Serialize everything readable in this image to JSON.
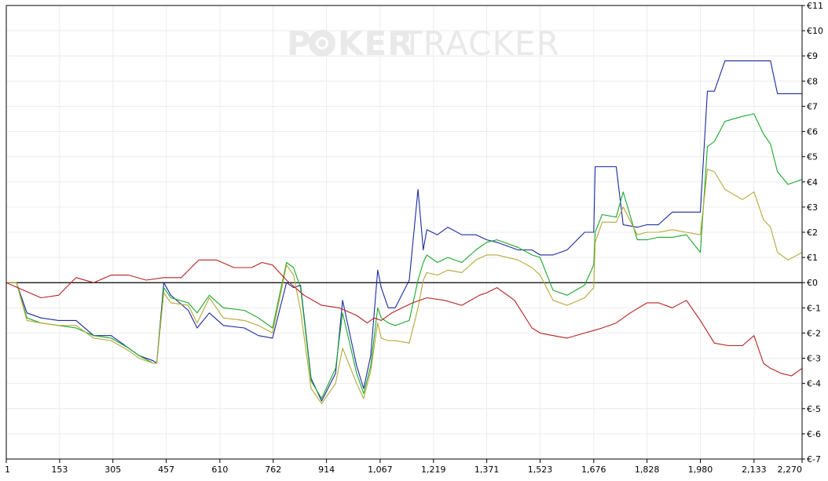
{
  "watermark": {
    "text_left": "P",
    "text_bold": "KER",
    "text_light": "TRACKER",
    "icon": "poker-chip-icon"
  },
  "chart_data": {
    "type": "line",
    "x_ticks": [
      1,
      153,
      305,
      457,
      610,
      762,
      914,
      1067,
      1219,
      1371,
      1523,
      1676,
      1828,
      1980,
      2133,
      2270
    ],
    "x_tick_labels": [
      "1",
      "153",
      "305",
      "457",
      "610",
      "762",
      "914",
      "1,067",
      "1,219",
      "1,371",
      "1,523",
      "1,676",
      "1,828",
      "1,980",
      "2,133",
      "2,270"
    ],
    "y_ticks": [
      -7,
      -6,
      -5,
      -4,
      -3,
      -2,
      -1,
      0,
      1,
      2,
      3,
      4,
      5,
      6,
      7,
      8,
      9,
      10,
      11
    ],
    "y_tick_labels": [
      "€-7",
      "€-6",
      "€-5",
      "€-4",
      "€-3",
      "€-2",
      "€-1",
      "€0",
      "€1",
      "€2",
      "€3",
      "€4",
      "€5",
      "€6",
      "€7",
      "€8",
      "€9",
      "€10",
      "€11"
    ],
    "xlim": [
      1,
      2270
    ],
    "ylim": [
      -7,
      11
    ],
    "grid": true,
    "y_axis_side": "right",
    "colors": {
      "blue": "#1a2a9c",
      "green": "#1aa82a",
      "olive": "#b4a838",
      "red": "#b42222",
      "zero_line": "#000000",
      "grid": "#ececec"
    },
    "series": [
      {
        "color": "#1a2a9c",
        "x": [
          1,
          30,
          60,
          100,
          150,
          200,
          250,
          300,
          350,
          380,
          420,
          430,
          450,
          470,
          520,
          545,
          580,
          620,
          680,
          720,
          760,
          800,
          820,
          840,
          870,
          900,
          940,
          960,
          1000,
          1020,
          1040,
          1060,
          1070,
          1090,
          1110,
          1150,
          1175,
          1190,
          1200,
          1230,
          1260,
          1300,
          1340,
          1371,
          1400,
          1460,
          1500,
          1523,
          1560,
          1600,
          1650,
          1676,
          1680,
          1700,
          1740,
          1760,
          1800,
          1828,
          1860,
          1900,
          1940,
          1980,
          2000,
          2020,
          2050,
          2100,
          2133,
          2160,
          2180,
          2200,
          2230,
          2270
        ],
        "y": [
          0,
          0,
          -1.2,
          -1.4,
          -1.5,
          -1.5,
          -2.1,
          -2.1,
          -2.6,
          -2.9,
          -3.1,
          -3.2,
          0,
          -0.5,
          -1.1,
          -1.8,
          -1.2,
          -1.7,
          -1.8,
          -2.1,
          -2.2,
          0,
          -0.2,
          -0.1,
          -3.8,
          -4.7,
          -3.6,
          -0.7,
          -3.3,
          -4.2,
          -2.9,
          0.5,
          -0.2,
          -1.0,
          -1.0,
          0.1,
          3.7,
          1.3,
          2.1,
          1.9,
          2.2,
          1.9,
          1.9,
          1.7,
          1.6,
          1.3,
          1.3,
          1.1,
          1.1,
          1.3,
          2.0,
          2.0,
          4.6,
          4.6,
          4.6,
          2.3,
          2.2,
          2.3,
          2.3,
          2.8,
          2.8,
          2.8,
          7.6,
          7.6,
          8.8,
          8.8,
          8.8,
          8.8,
          8.8,
          7.5,
          7.5,
          7.5
        ]
      },
      {
        "color": "#1aa82a",
        "x": [
          1,
          30,
          60,
          100,
          150,
          200,
          250,
          300,
          350,
          380,
          420,
          430,
          450,
          470,
          520,
          545,
          580,
          620,
          680,
          720,
          760,
          800,
          820,
          840,
          870,
          900,
          940,
          960,
          1000,
          1020,
          1040,
          1060,
          1070,
          1090,
          1110,
          1150,
          1175,
          1190,
          1200,
          1230,
          1260,
          1300,
          1340,
          1371,
          1400,
          1460,
          1500,
          1523,
          1560,
          1600,
          1650,
          1676,
          1680,
          1700,
          1740,
          1760,
          1800,
          1828,
          1860,
          1900,
          1940,
          1980,
          2000,
          2020,
          2050,
          2100,
          2133,
          2160,
          2180,
          2200,
          2230,
          2270
        ],
        "y": [
          0,
          0,
          -1.4,
          -1.6,
          -1.7,
          -1.8,
          -2.1,
          -2.2,
          -2.6,
          -2.9,
          -3.2,
          -3.2,
          -0.2,
          -0.6,
          -0.8,
          -1.2,
          -0.5,
          -1.0,
          -1.1,
          -1.4,
          -1.8,
          0.8,
          0.6,
          -0.2,
          -3.9,
          -4.6,
          -3.4,
          -1.2,
          -3.6,
          -4.4,
          -3.3,
          -1.0,
          -1.4,
          -1.6,
          -1.7,
          -1.5,
          0.1,
          0.8,
          1.1,
          0.8,
          1.0,
          0.8,
          1.3,
          1.6,
          1.7,
          1.4,
          1.1,
          1.0,
          -0.3,
          -0.5,
          -0.1,
          0.7,
          2.0,
          2.7,
          2.6,
          3.6,
          1.7,
          1.7,
          1.8,
          1.8,
          1.9,
          1.2,
          5.4,
          5.6,
          6.4,
          6.6,
          6.7,
          5.9,
          5.5,
          4.4,
          3.9,
          4.1
        ]
      },
      {
        "color": "#b4a838",
        "x": [
          1,
          30,
          60,
          100,
          150,
          200,
          250,
          300,
          350,
          380,
          420,
          430,
          450,
          470,
          520,
          545,
          580,
          620,
          680,
          720,
          760,
          800,
          820,
          840,
          870,
          900,
          940,
          960,
          1000,
          1020,
          1040,
          1060,
          1070,
          1090,
          1110,
          1150,
          1175,
          1190,
          1200,
          1230,
          1260,
          1300,
          1340,
          1371,
          1400,
          1460,
          1500,
          1523,
          1560,
          1600,
          1650,
          1676,
          1680,
          1700,
          1740,
          1760,
          1800,
          1828,
          1860,
          1900,
          1940,
          1980,
          2000,
          2020,
          2050,
          2100,
          2133,
          2160,
          2180,
          2200,
          2230,
          2270
        ],
        "y": [
          0,
          0,
          -1.5,
          -1.6,
          -1.7,
          -1.7,
          -2.2,
          -2.3,
          -2.7,
          -3.0,
          -3.2,
          -3.2,
          -0.4,
          -0.8,
          -0.9,
          -1.6,
          -0.6,
          -1.4,
          -1.5,
          -1.7,
          -2.0,
          0.7,
          0.3,
          -1.1,
          -4.2,
          -4.8,
          -4.0,
          -2.6,
          -4.0,
          -4.6,
          -3.5,
          -1.6,
          -2.2,
          -2.3,
          -2.3,
          -2.4,
          -1.0,
          0.1,
          0.4,
          0.3,
          0.5,
          0.4,
          0.9,
          1.1,
          1.1,
          0.9,
          0.6,
          0.3,
          -0.7,
          -0.9,
          -0.6,
          -0.2,
          1.6,
          2.4,
          2.4,
          3.0,
          1.9,
          2.0,
          2.0,
          2.1,
          2.0,
          1.9,
          4.5,
          4.4,
          3.7,
          3.3,
          3.6,
          2.5,
          2.2,
          1.2,
          0.9,
          1.2
        ]
      },
      {
        "color": "#b42222",
        "x": [
          1,
          50,
          100,
          150,
          200,
          250,
          300,
          350,
          400,
          450,
          500,
          550,
          600,
          650,
          700,
          730,
          760,
          800,
          850,
          900,
          950,
          1000,
          1030,
          1050,
          1070,
          1100,
          1130,
          1160,
          1200,
          1250,
          1300,
          1350,
          1371,
          1400,
          1450,
          1500,
          1523,
          1560,
          1600,
          1650,
          1676,
          1700,
          1740,
          1780,
          1828,
          1860,
          1900,
          1940,
          1980,
          2020,
          2060,
          2100,
          2133,
          2160,
          2180,
          2210,
          2240,
          2270
        ],
        "y": [
          0,
          -0.3,
          -0.6,
          -0.5,
          0.2,
          0,
          0.3,
          0.3,
          0.1,
          0.2,
          0.2,
          0.9,
          0.9,
          0.6,
          0.6,
          0.8,
          0.7,
          0.1,
          -0.5,
          -0.9,
          -1.0,
          -1.3,
          -1.6,
          -1.4,
          -1.5,
          -1.2,
          -1.0,
          -0.8,
          -0.6,
          -0.7,
          -0.9,
          -0.5,
          -0.4,
          -0.2,
          -0.7,
          -1.8,
          -2.0,
          -2.1,
          -2.2,
          -2.0,
          -1.9,
          -1.8,
          -1.6,
          -1.2,
          -0.8,
          -0.8,
          -1.0,
          -0.7,
          -1.5,
          -2.4,
          -2.5,
          -2.5,
          -2.1,
          -3.2,
          -3.4,
          -3.6,
          -3.7,
          -3.4
        ]
      }
    ]
  }
}
